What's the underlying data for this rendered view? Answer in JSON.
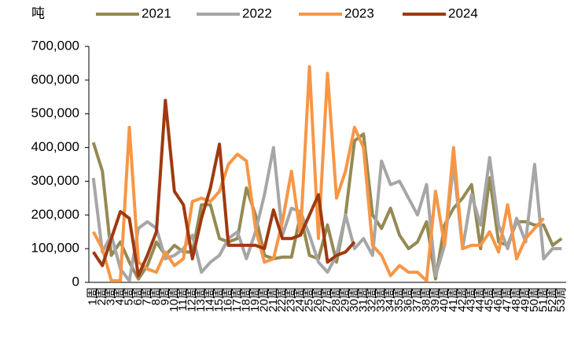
{
  "chart_data": {
    "type": "line",
    "y_label": "吨",
    "categories": [
      "1周",
      "2周",
      "3周",
      "4周",
      "5周",
      "6周",
      "7周",
      "8周",
      "9周",
      "10周",
      "11周",
      "12周",
      "13周",
      "14周",
      "15周",
      "16周",
      "17周",
      "18周",
      "19周",
      "20周",
      "21周",
      "22周",
      "23周",
      "24周",
      "25周",
      "26周",
      "27周",
      "28周",
      "29周",
      "30周",
      "31周",
      "32周",
      "33周",
      "34周",
      "35周",
      "36周",
      "37周",
      "38周",
      "39周",
      "40周",
      "41周",
      "42周",
      "43周",
      "44周",
      "45周",
      "46周",
      "47周",
      "48周",
      "49周",
      "50周",
      "51周",
      "52周",
      "53周"
    ],
    "series": [
      {
        "name": "2021",
        "color": "#948a54",
        "values": [
          415000,
          330000,
          80000,
          120000,
          60000,
          10000,
          50000,
          120000,
          80000,
          110000,
          90000,
          90000,
          230000,
          230000,
          130000,
          120000,
          130000,
          280000,
          200000,
          80000,
          70000,
          75000,
          75000,
          200000,
          80000,
          70000,
          170000,
          60000,
          200000,
          420000,
          440000,
          200000,
          160000,
          220000,
          140000,
          100000,
          120000,
          180000,
          10000,
          170000,
          220000,
          250000,
          290000,
          100000,
          310000,
          120000,
          110000,
          180000,
          180000,
          170000,
          170000,
          110000,
          130000
        ]
      },
      {
        "name": "2022",
        "color": "#a6a6a6",
        "values": [
          310000,
          90000,
          140000,
          40000,
          5000,
          160000,
          180000,
          160000,
          70000,
          80000,
          100000,
          140000,
          30000,
          60000,
          80000,
          130000,
          150000,
          70000,
          150000,
          260000,
          400000,
          140000,
          220000,
          210000,
          140000,
          60000,
          30000,
          80000,
          200000,
          100000,
          130000,
          80000,
          360000,
          290000,
          300000,
          250000,
          200000,
          290000,
          20000,
          110000,
          350000,
          100000,
          260000,
          170000,
          370000,
          170000,
          100000,
          190000,
          120000,
          350000,
          70000,
          100000,
          100000
        ]
      },
      {
        "name": "2023",
        "color": "#f79646",
        "values": [
          150000,
          100000,
          5000,
          5000,
          460000,
          60000,
          40000,
          30000,
          90000,
          50000,
          70000,
          240000,
          250000,
          240000,
          270000,
          350000,
          380000,
          360000,
          160000,
          60000,
          70000,
          180000,
          330000,
          140000,
          640000,
          130000,
          620000,
          250000,
          330000,
          460000,
          400000,
          110000,
          80000,
          20000,
          50000,
          30000,
          30000,
          5000,
          270000,
          110000,
          400000,
          100000,
          110000,
          110000,
          150000,
          90000,
          230000,
          70000,
          130000,
          160000,
          190000,
          null,
          null
        ]
      },
      {
        "name": "2024",
        "color": "#a0390f",
        "values": [
          90000,
          50000,
          130000,
          210000,
          190000,
          20000,
          80000,
          150000,
          540000,
          270000,
          230000,
          70000,
          190000,
          280000,
          410000,
          110000,
          110000,
          110000,
          110000,
          100000,
          215000,
          130000,
          130000,
          140000,
          200000,
          260000,
          60000,
          80000,
          90000,
          120000,
          null,
          null,
          null,
          null,
          null,
          null,
          null,
          null,
          null,
          null,
          null,
          null,
          null,
          null,
          null,
          null,
          null,
          null,
          null,
          null,
          null,
          null,
          null
        ]
      }
    ],
    "ylim": [
      0,
      700000
    ],
    "yticks": [
      {
        "value": 0,
        "label": "0"
      },
      {
        "value": 100000,
        "label": "100,000"
      },
      {
        "value": 200000,
        "label": "200,000"
      },
      {
        "value": 300000,
        "label": "300,000"
      },
      {
        "value": 400000,
        "label": "400,000"
      },
      {
        "value": 500000,
        "label": "500,000"
      },
      {
        "value": 600000,
        "label": "600,000"
      },
      {
        "value": 700000,
        "label": "700,000"
      }
    ]
  }
}
